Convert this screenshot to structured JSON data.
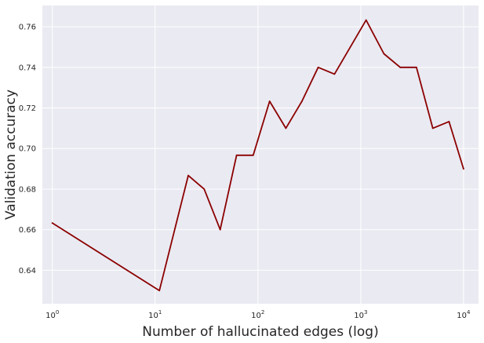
{
  "chart_data": {
    "type": "line",
    "title": "",
    "xlabel": "Number of hallucinated edges (log)",
    "ylabel": "Validation accuracy",
    "xscale": "log",
    "xlim": [
      0.8,
      14000
    ],
    "ylim": [
      0.6235,
      0.7705
    ],
    "grid": true,
    "line_color": "#8b0000",
    "background_color": "#eaeaf2",
    "grid_color": "#ffffff",
    "x_ticks": [
      {
        "base": "10",
        "exp": "0",
        "value": 1
      },
      {
        "base": "10",
        "exp": "1",
        "value": 10
      },
      {
        "base": "10",
        "exp": "2",
        "value": 100
      },
      {
        "base": "10",
        "exp": "3",
        "value": 1000
      },
      {
        "base": "10",
        "exp": "4",
        "value": 10000
      }
    ],
    "y_ticks": [
      {
        "label": "0.64",
        "value": 0.64
      },
      {
        "label": "0.66",
        "value": 0.66
      },
      {
        "label": "0.68",
        "value": 0.68
      },
      {
        "label": "0.70",
        "value": 0.7
      },
      {
        "label": "0.72",
        "value": 0.72
      },
      {
        "label": "0.74",
        "value": 0.74
      },
      {
        "label": "0.76",
        "value": 0.76
      }
    ],
    "series": [
      {
        "x": [
          1,
          11,
          21,
          30,
          43,
          62,
          90,
          130,
          187,
          268,
          386,
          556,
          1129,
          1683,
          2423,
          3489,
          5024,
          7234,
          10000
        ],
        "values": [
          0.6633,
          0.63,
          0.6867,
          0.68,
          0.66,
          0.6967,
          0.6967,
          0.7233,
          0.71,
          0.7233,
          0.74,
          0.7367,
          0.7633,
          0.7467,
          0.74,
          0.74,
          0.71,
          0.7133,
          0.69
        ]
      }
    ]
  }
}
